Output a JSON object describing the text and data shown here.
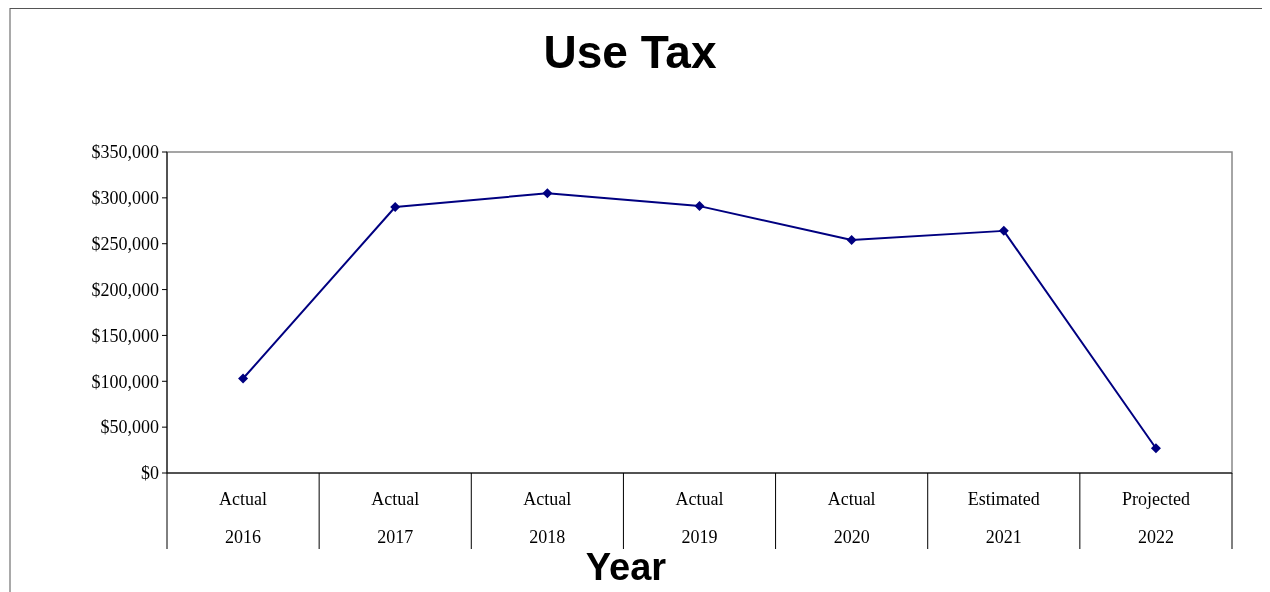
{
  "chart_data": {
    "type": "line",
    "title": "Use Tax",
    "xlabel": "Year",
    "categories": [
      "Actual\n2016",
      "Actual\n2017",
      "Actual\n2018",
      "Actual\n2019",
      "Actual\n2020",
      "Estimated\n2021",
      "Projected\n2022"
    ],
    "series": [
      {
        "color": "#000080",
        "values": [
          103000,
          290000,
          305000,
          291000,
          254000,
          264000,
          27000
        ]
      }
    ],
    "ylim": [
      0,
      350000
    ],
    "yticks": [
      {
        "value": 0,
        "label": "$0"
      },
      {
        "value": 50000,
        "label": "$50,000"
      },
      {
        "value": 100000,
        "label": "$100,000"
      },
      {
        "value": 150000,
        "label": "$150,000"
      },
      {
        "value": 200000,
        "label": "$200,000"
      },
      {
        "value": 250000,
        "label": "$250,000"
      },
      {
        "value": 300000,
        "label": "$300,000"
      },
      {
        "value": 350000,
        "label": "$350,000"
      }
    ],
    "grid": false,
    "marker": "diamond",
    "line_style": "solid"
  }
}
